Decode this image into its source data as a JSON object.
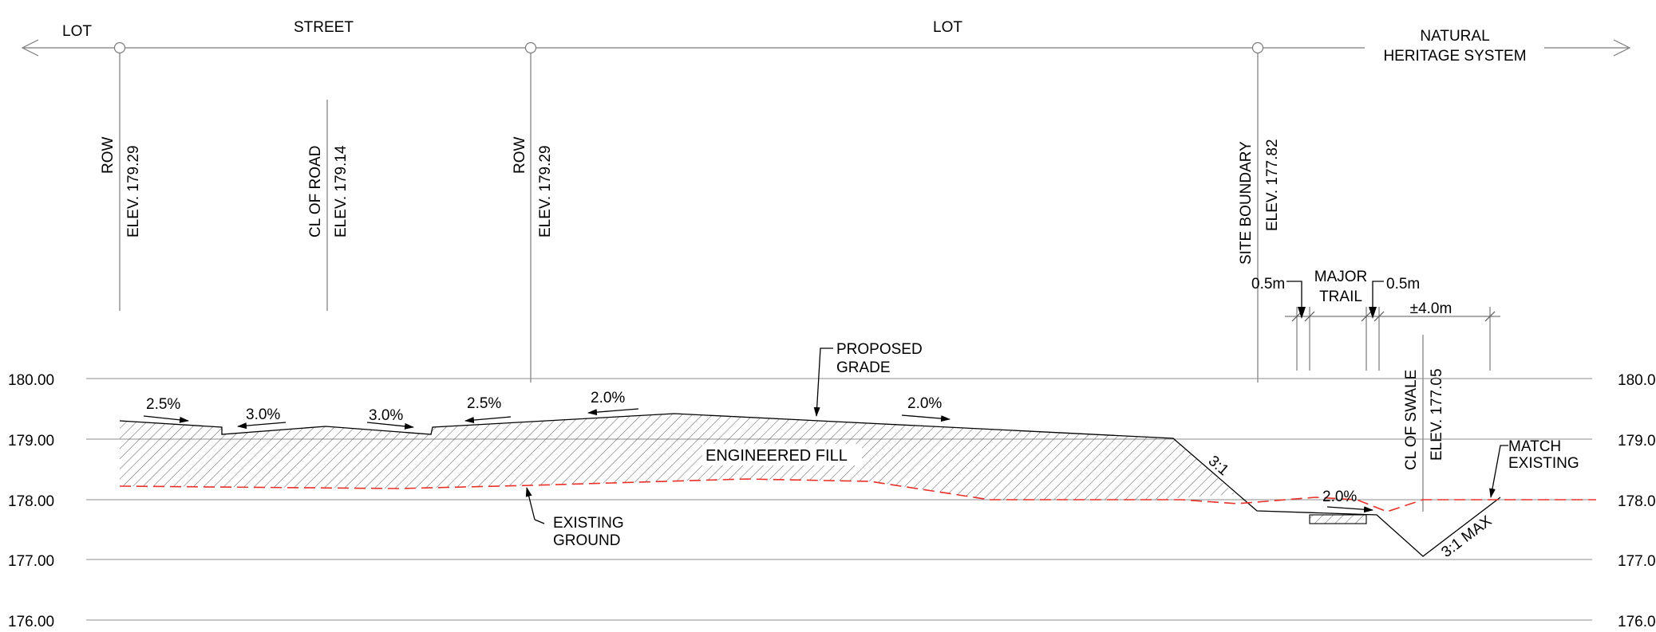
{
  "top_labels": {
    "lot_left": "LOT",
    "street": "STREET",
    "lot_mid": "LOT",
    "nhs_line1": "NATURAL",
    "nhs_line2": "HERITAGE SYSTEM"
  },
  "markers": {
    "row_left_1": "ROW",
    "row_left_2": "ELEV. 179.29",
    "cl_road_1": "CL OF ROAD",
    "cl_road_2": "ELEV. 179.14",
    "row_right_1": "ROW",
    "row_right_2": "ELEV. 179.29",
    "site_1": "SITE BOUNDARY",
    "site_2": "ELEV. 177.82",
    "swale_1": "CL OF SWALE",
    "swale_2": "ELEV. 177.05"
  },
  "dimensions": {
    "left_offset": "0.5m",
    "trail_1": "MAJOR",
    "trail_2": "TRAIL",
    "right_offset": "0.5m",
    "width": "±4.0m"
  },
  "elevation_labels": [
    "180.00",
    "179.00",
    "178.00",
    "177.00",
    "176.00"
  ],
  "elevation_labels_right": [
    "180.0",
    "179.0",
    "178.0",
    "177.0",
    "176.0"
  ],
  "slopes": {
    "s1": "2.5%",
    "s2": "3.0%",
    "s3": "3.0%",
    "s4": "2.5%",
    "s5": "2.0%",
    "s6": "2.0%",
    "s7": "2.0%",
    "side": "3:1",
    "swale_side": "3:1 MAX"
  },
  "callouts": {
    "proposed_1": "PROPOSED",
    "proposed_2": "GRADE",
    "fill": "ENGINEERED FILL",
    "existing_1": "EXISTING",
    "existing_2": "GROUND",
    "match_1": "MATCH",
    "match_2": "EXISTING"
  },
  "colors": {
    "existing_ground": "#e8312a",
    "line_work": "#000000",
    "reference_lines": "#7a7a7a"
  }
}
